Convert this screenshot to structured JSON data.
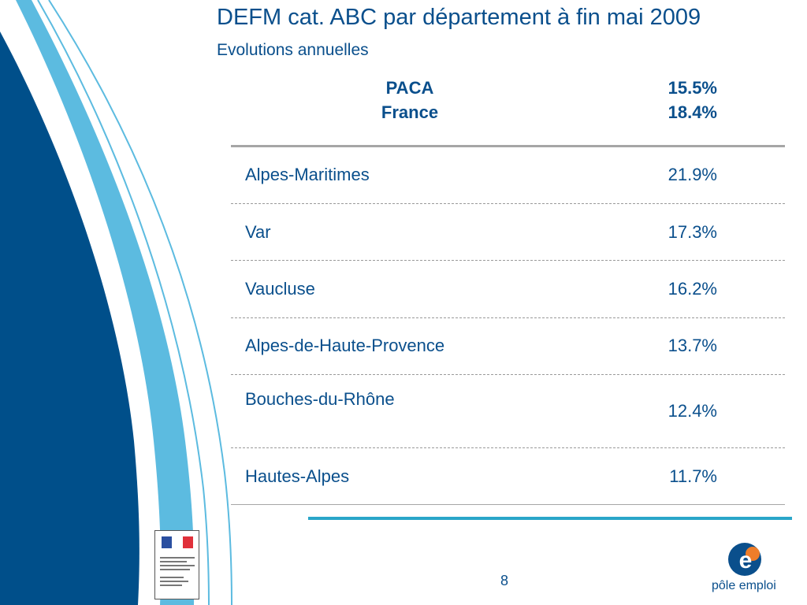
{
  "slide": {
    "title": "DEFM cat. ABC par département à fin mai 2009",
    "subtitle": "Evolutions annuelles",
    "summary": [
      {
        "label": "PACA",
        "value": "15.5%"
      },
      {
        "label": "France",
        "value": "18.4%"
      }
    ],
    "rows": [
      {
        "name": "Alpes-Maritimes",
        "value": "21.9%"
      },
      {
        "name": "Var",
        "value": "17.3%"
      },
      {
        "name": "Vaucluse",
        "value": "16.2%"
      },
      {
        "name": "Alpes-de-Haute-Provence",
        "value": "13.7%"
      },
      {
        "name": "Bouches-du-Rhône",
        "value": "12.4%"
      },
      {
        "name": "Hautes-Alpes",
        "value": "11.7%"
      }
    ],
    "page_number": "8"
  },
  "logos": {
    "pole_emploi": "pôle emploi",
    "prefecture": "PRÉFECTURE DE LA RÉGION PROVENCE ALPES CÔTE D'AZUR"
  },
  "colors": {
    "primary": "#0a4f8c",
    "accent": "#2aa6c9",
    "deco_dark": "#004f8a",
    "deco_light": "#5cbbe0",
    "logo_orange": "#ee7d2a"
  }
}
